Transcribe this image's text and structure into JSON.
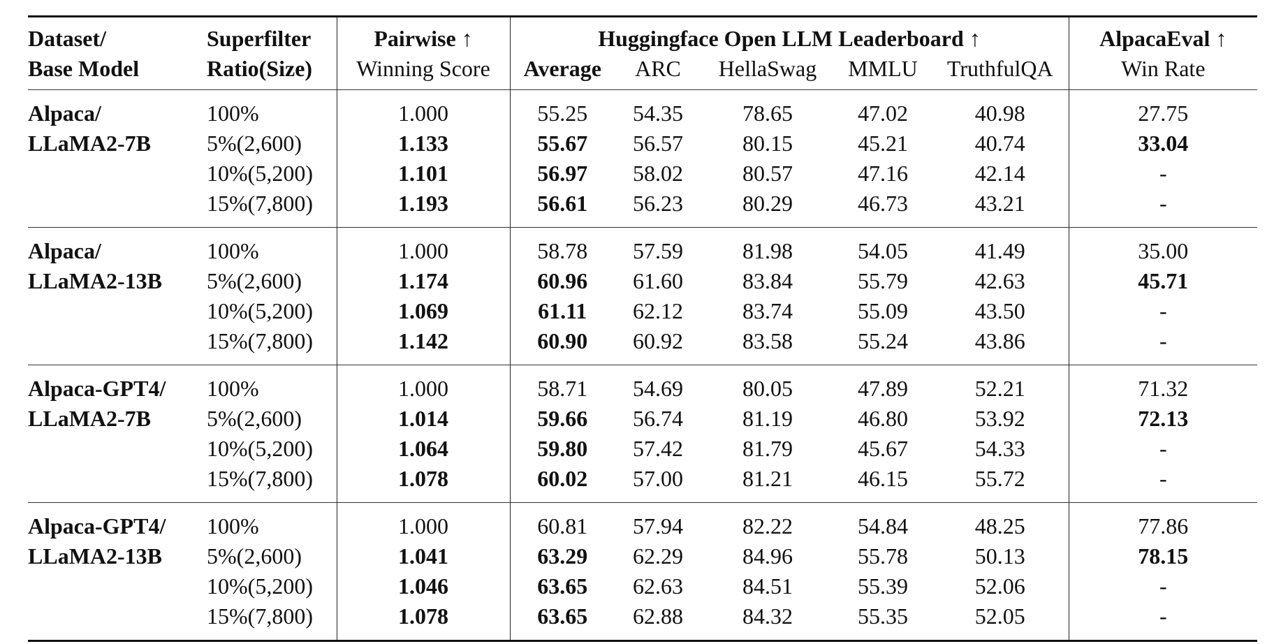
{
  "table": {
    "headers": {
      "dataset": [
        "Dataset/",
        "Base Model"
      ],
      "superfilter": [
        "Superfilter",
        "Ratio(Size)"
      ],
      "pairwise": [
        "Pairwise ↑",
        "Winning Score"
      ],
      "huggingface": "Huggingface Open LLM Leaderboard ↑",
      "hf_cols": [
        "Average",
        "ARC",
        "HellaSwag",
        "MMLU",
        "TruthfulQA"
      ],
      "alpacaeval": [
        "AlpacaEval ↑",
        "Win Rate"
      ]
    },
    "groups": [
      {
        "dataset": [
          "Alpaca/",
          "LLaMA2-7B"
        ],
        "rows": [
          {
            "ratio": "100%",
            "pairwise": "1.000",
            "average": "55.25",
            "arc": "54.35",
            "hellaswag": "78.65",
            "mmlu": "47.02",
            "truthfulqa": "40.98",
            "winrate": "27.75"
          },
          {
            "ratio": "5%(2,600)",
            "pairwise": "1.133",
            "average": "55.67",
            "arc": "56.57",
            "hellaswag": "80.15",
            "mmlu": "45.21",
            "truthfulqa": "40.74",
            "winrate": "33.04"
          },
          {
            "ratio": "10%(5,200)",
            "pairwise": "1.101",
            "average": "56.97",
            "arc": "58.02",
            "hellaswag": "80.57",
            "mmlu": "47.16",
            "truthfulqa": "42.14",
            "winrate": "-"
          },
          {
            "ratio": "15%(7,800)",
            "pairwise": "1.193",
            "average": "56.61",
            "arc": "56.23",
            "hellaswag": "80.29",
            "mmlu": "46.73",
            "truthfulqa": "43.21",
            "winrate": "-"
          }
        ]
      },
      {
        "dataset": [
          "Alpaca/",
          "LLaMA2-13B"
        ],
        "rows": [
          {
            "ratio": "100%",
            "pairwise": "1.000",
            "average": "58.78",
            "arc": "57.59",
            "hellaswag": "81.98",
            "mmlu": "54.05",
            "truthfulqa": "41.49",
            "winrate": "35.00"
          },
          {
            "ratio": "5%(2,600)",
            "pairwise": "1.174",
            "average": "60.96",
            "arc": "61.60",
            "hellaswag": "83.84",
            "mmlu": "55.79",
            "truthfulqa": "42.63",
            "winrate": "45.71"
          },
          {
            "ratio": "10%(5,200)",
            "pairwise": "1.069",
            "average": "61.11",
            "arc": "62.12",
            "hellaswag": "83.74",
            "mmlu": "55.09",
            "truthfulqa": "43.50",
            "winrate": "-"
          },
          {
            "ratio": "15%(7,800)",
            "pairwise": "1.142",
            "average": "60.90",
            "arc": "60.92",
            "hellaswag": "83.58",
            "mmlu": "55.24",
            "truthfulqa": "43.86",
            "winrate": "-"
          }
        ]
      },
      {
        "dataset": [
          "Alpaca-GPT4/",
          "LLaMA2-7B"
        ],
        "rows": [
          {
            "ratio": "100%",
            "pairwise": "1.000",
            "average": "58.71",
            "arc": "54.69",
            "hellaswag": "80.05",
            "mmlu": "47.89",
            "truthfulqa": "52.21",
            "winrate": "71.32"
          },
          {
            "ratio": "5%(2,600)",
            "pairwise": "1.014",
            "average": "59.66",
            "arc": "56.74",
            "hellaswag": "81.19",
            "mmlu": "46.80",
            "truthfulqa": "53.92",
            "winrate": "72.13"
          },
          {
            "ratio": "10%(5,200)",
            "pairwise": "1.064",
            "average": "59.80",
            "arc": "57.42",
            "hellaswag": "81.79",
            "mmlu": "45.67",
            "truthfulqa": "54.33",
            "winrate": "-"
          },
          {
            "ratio": "15%(7,800)",
            "pairwise": "1.078",
            "average": "60.02",
            "arc": "57.00",
            "hellaswag": "81.21",
            "mmlu": "46.15",
            "truthfulqa": "55.72",
            "winrate": "-"
          }
        ]
      },
      {
        "dataset": [
          "Alpaca-GPT4/",
          "LLaMA2-13B"
        ],
        "rows": [
          {
            "ratio": "100%",
            "pairwise": "1.000",
            "average": "60.81",
            "arc": "57.94",
            "hellaswag": "82.22",
            "mmlu": "54.84",
            "truthfulqa": "48.25",
            "winrate": "77.86"
          },
          {
            "ratio": "5%(2,600)",
            "pairwise": "1.041",
            "average": "63.29",
            "arc": "62.29",
            "hellaswag": "84.96",
            "mmlu": "55.78",
            "truthfulqa": "50.13",
            "winrate": "78.15"
          },
          {
            "ratio": "10%(5,200)",
            "pairwise": "1.046",
            "average": "63.65",
            "arc": "62.63",
            "hellaswag": "84.51",
            "mmlu": "55.39",
            "truthfulqa": "52.06",
            "winrate": "-"
          },
          {
            "ratio": "15%(7,800)",
            "pairwise": "1.078",
            "average": "63.65",
            "arc": "62.88",
            "hellaswag": "84.32",
            "mmlu": "55.35",
            "truthfulqa": "52.05",
            "winrate": "-"
          }
        ]
      }
    ]
  }
}
